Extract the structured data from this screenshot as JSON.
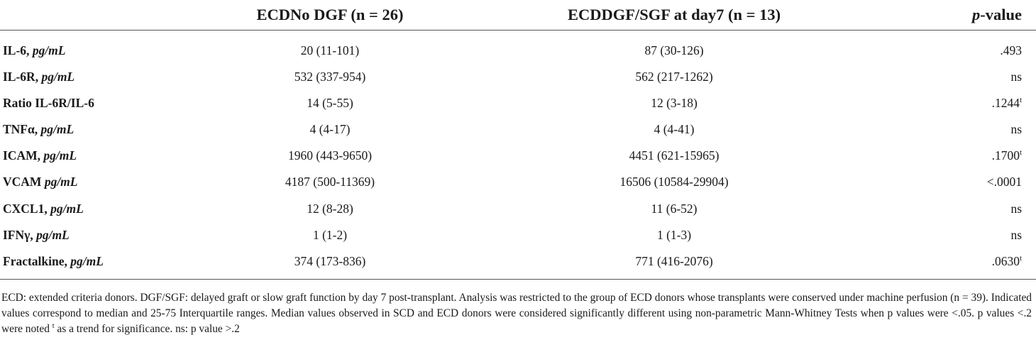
{
  "header": {
    "col_marker": "",
    "col_no_dgf": "ECDNo DGF (n = 26)",
    "col_dgf": "ECDDGF/SGF at day7 (n = 13)",
    "col_pvalue_italic": "p",
    "col_pvalue_rest": "-value"
  },
  "rows": [
    {
      "marker": "IL-6, ",
      "unit": "pg/mL",
      "no_dgf": "20 (11-101)",
      "dgf": "87 (30-126)",
      "p": ".493",
      "p_sup": ""
    },
    {
      "marker": "IL-6R, ",
      "unit": "pg/mL",
      "no_dgf": "532 (337-954)",
      "dgf": "562 (217-1262)",
      "p": "ns",
      "p_sup": ""
    },
    {
      "marker": "Ratio IL-6R/IL-6",
      "unit": "",
      "no_dgf": "14 (5-55)",
      "dgf": "12 (3-18)",
      "p": ".1244",
      "p_sup": "t"
    },
    {
      "marker": "TNFα, ",
      "unit": "pg/mL",
      "no_dgf": "4 (4-17)",
      "dgf": "4 (4-41)",
      "p": "ns",
      "p_sup": ""
    },
    {
      "marker": "ICAM, ",
      "unit": "pg/mL",
      "no_dgf": "1960 (443-9650)",
      "dgf": "4451 (621-15965)",
      "p": ".1700",
      "p_sup": "t"
    },
    {
      "marker": "VCAM ",
      "unit": "pg/mL",
      "no_dgf": "4187 (500-11369)",
      "dgf": "16506 (10584-29904)",
      "p": "<.0001",
      "p_sup": ""
    },
    {
      "marker": "CXCL1, ",
      "unit": "pg/mL",
      "no_dgf": "12 (8-28)",
      "dgf": "11 (6-52)",
      "p": "ns",
      "p_sup": ""
    },
    {
      "marker": "IFNγ, ",
      "unit": "pg/mL",
      "no_dgf": "1 (1-2)",
      "dgf": "1 (1-3)",
      "p": "ns",
      "p_sup": ""
    },
    {
      "marker": "Fractalkine, ",
      "unit": "pg/mL",
      "no_dgf": "374 (173-836)",
      "dgf": "771 (416-2076)",
      "p": ".0630",
      "p_sup": "t"
    }
  ],
  "footnote": {
    "before_sup": "ECD: extended criteria donors. DGF/SGF: delayed graft or slow graft function by day 7 post-transplant. Analysis was restricted to the group of ECD donors whose transplants were conserved under machine perfusion (n = 39). Indicated values correspond to median and 25-75 Interquartile ranges. Median values observed in SCD and ECD donors were considered significantly different using non-parametric Mann-Whitney Tests when p values were <.05. p values <.2 were noted ",
    "sup": "t",
    "after_sup": " as a trend for significance. ns: p value >.2"
  }
}
